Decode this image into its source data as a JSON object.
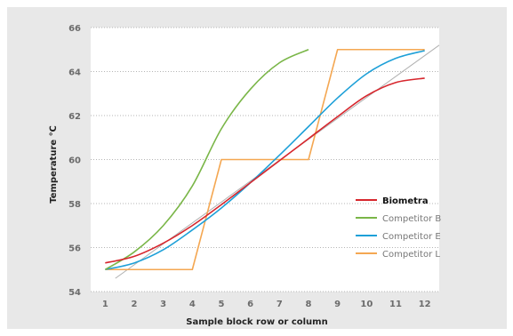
{
  "chart_data": {
    "type": "line",
    "xlabel": "Sample block row or column",
    "ylabel": "Temperature ℃",
    "x_ticks": [
      "1",
      "2",
      "3",
      "4",
      "5",
      "6",
      "7",
      "8",
      "9",
      "10",
      "11",
      "12"
    ],
    "y_ticks": [
      "54",
      "56",
      "58",
      "60",
      "62",
      "64",
      "66"
    ],
    "xlim": [
      0.5,
      12.5
    ],
    "ylim": [
      54,
      66
    ],
    "grid": {
      "horizontal": true,
      "vertical": false
    },
    "legend_position": "right",
    "series": [
      {
        "name": "Biometra",
        "color": "#d7262d",
        "x": [
          1,
          2,
          3,
          4,
          5,
          6,
          7,
          8,
          9,
          10,
          11,
          12
        ],
        "y": [
          55.3,
          55.6,
          56.2,
          57.0,
          57.95,
          58.95,
          59.95,
          60.95,
          61.95,
          62.9,
          63.5,
          63.7
        ]
      },
      {
        "name": "Competitor B",
        "color": "#7ab648",
        "x": [
          1,
          2,
          3,
          4,
          5,
          6,
          7,
          8
        ],
        "y": [
          55.0,
          55.8,
          57.0,
          58.8,
          61.4,
          63.2,
          64.4,
          65.0
        ]
      },
      {
        "name": "Competitor E",
        "color": "#1ea0d8",
        "x": [
          1,
          2,
          3,
          4,
          5,
          6,
          7,
          8,
          9,
          10,
          11,
          12
        ],
        "y": [
          55.0,
          55.3,
          55.9,
          56.8,
          57.8,
          58.95,
          60.2,
          61.5,
          62.8,
          63.9,
          64.6,
          64.95
        ]
      },
      {
        "name": "Competitor L",
        "color": "#f4a752",
        "x": [
          1,
          4,
          5,
          8,
          9,
          12
        ],
        "y": [
          55.0,
          55.0,
          60.0,
          60.0,
          65.0,
          65.0
        ]
      },
      {
        "name": "",
        "color": "#b0b0b0",
        "x": [
          1.35,
          12.5
        ],
        "y": [
          54.6,
          65.2
        ]
      }
    ]
  }
}
